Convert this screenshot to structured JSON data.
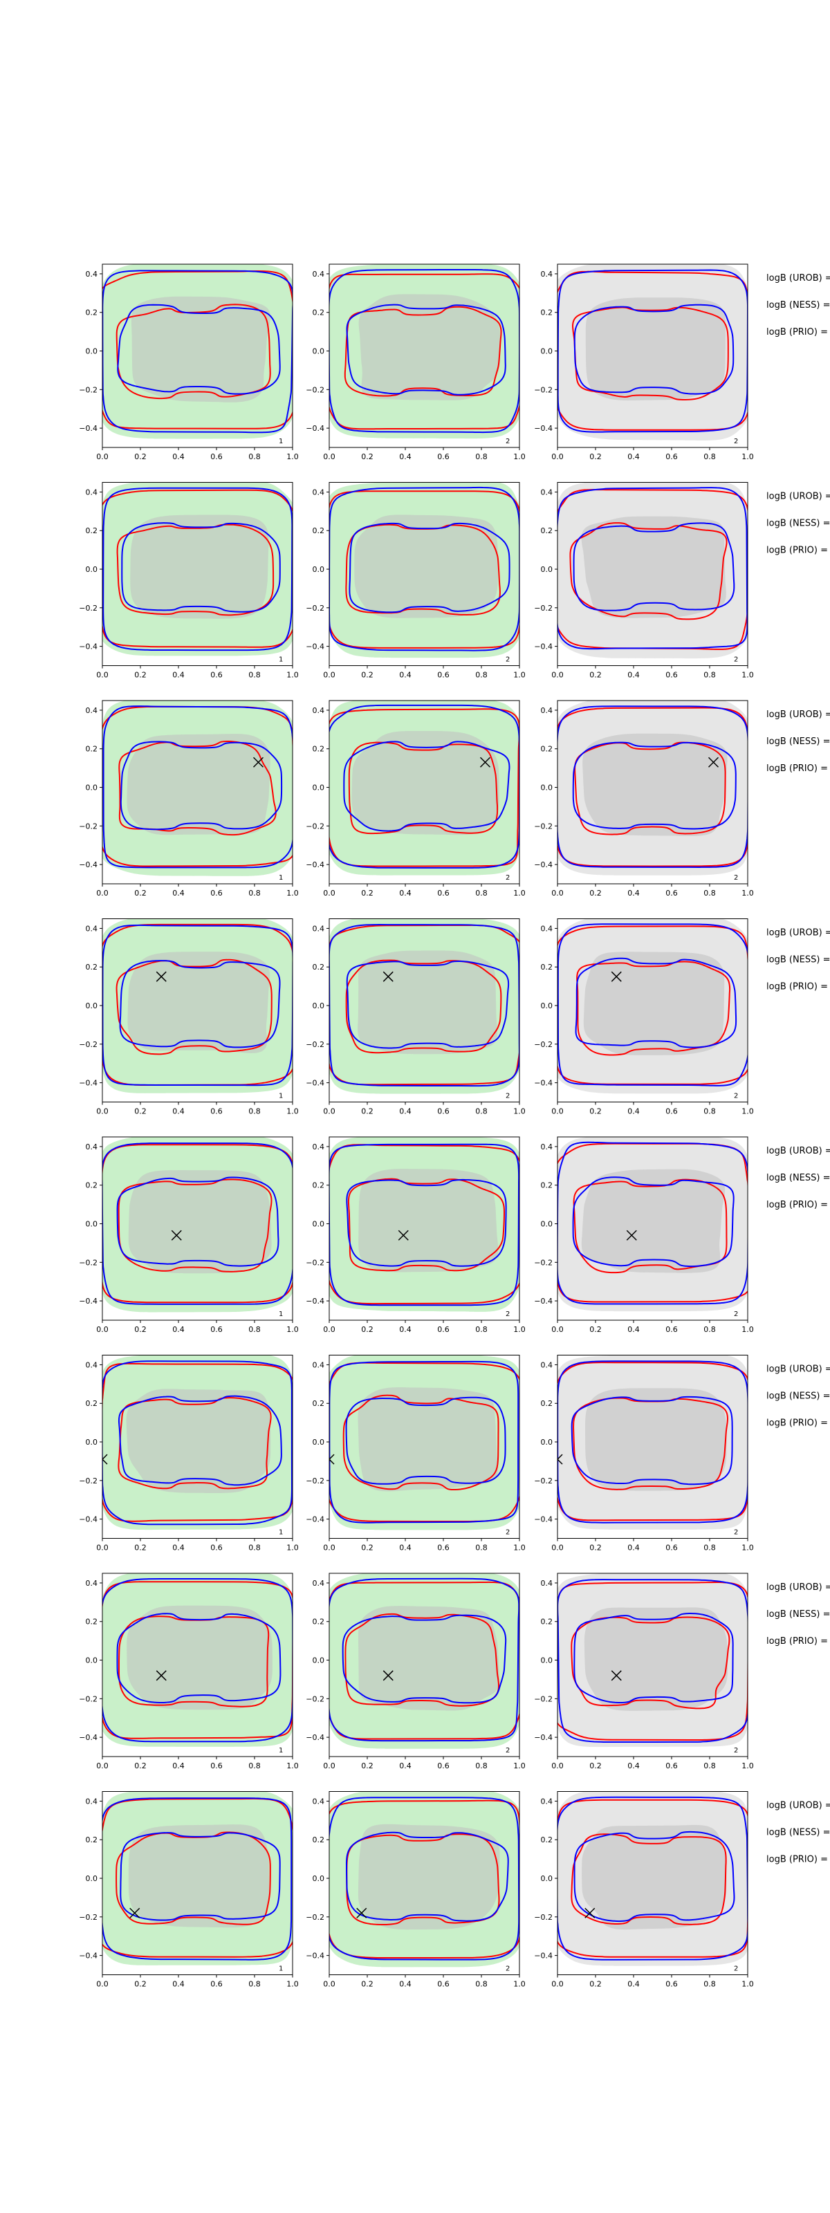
{
  "figure": {
    "rows": 8,
    "cols": 3,
    "x_ticks": [
      "0.0",
      "0.2",
      "0.4",
      "0.6",
      "0.8",
      "1.0"
    ],
    "y_ticks": [
      "0.4",
      "0.2",
      "0.0",
      "−0.2",
      "−0.4"
    ],
    "side_labels": [
      "logB (UROB) =",
      "logB (NESS) =",
      "logB (PRIO) ="
    ]
  },
  "chart_data": [
    {
      "type": "contour",
      "row": 1,
      "panels": [
        {
          "panel_label": "1",
          "fill": "green",
          "marker": null
        },
        {
          "panel_label": "2",
          "fill": "green",
          "marker": null
        },
        {
          "panel_label": "2",
          "fill": "gray",
          "marker": null
        }
      ]
    },
    {
      "type": "contour",
      "row": 2,
      "panels": [
        {
          "panel_label": "1",
          "fill": "green",
          "marker": null
        },
        {
          "panel_label": "2",
          "fill": "green",
          "marker": null
        },
        {
          "panel_label": "2",
          "fill": "gray",
          "marker": null
        }
      ]
    },
    {
      "type": "contour",
      "row": 3,
      "panels": [
        {
          "panel_label": "1",
          "fill": "green",
          "marker": {
            "x": 0.82,
            "y": 0.13
          }
        },
        {
          "panel_label": "2",
          "fill": "green",
          "marker": {
            "x": 0.82,
            "y": 0.13
          }
        },
        {
          "panel_label": "2",
          "fill": "gray",
          "marker": {
            "x": 0.82,
            "y": 0.13
          }
        }
      ]
    },
    {
      "type": "contour",
      "row": 4,
      "panels": [
        {
          "panel_label": "1",
          "fill": "green",
          "marker": {
            "x": 0.31,
            "y": 0.15
          }
        },
        {
          "panel_label": "2",
          "fill": "green",
          "marker": {
            "x": 0.31,
            "y": 0.15
          }
        },
        {
          "panel_label": "2",
          "fill": "gray",
          "marker": {
            "x": 0.31,
            "y": 0.15
          }
        }
      ]
    },
    {
      "type": "contour",
      "row": 5,
      "panels": [
        {
          "panel_label": "1",
          "fill": "green",
          "marker": {
            "x": 0.39,
            "y": -0.06
          }
        },
        {
          "panel_label": "2",
          "fill": "green",
          "marker": {
            "x": 0.39,
            "y": -0.06
          }
        },
        {
          "panel_label": "2",
          "fill": "gray",
          "marker": {
            "x": 0.39,
            "y": -0.06
          }
        }
      ]
    },
    {
      "type": "contour",
      "row": 6,
      "panels": [
        {
          "panel_label": "1",
          "fill": "green",
          "marker": {
            "x": 0.0,
            "y": -0.09
          }
        },
        {
          "panel_label": "2",
          "fill": "green",
          "marker": {
            "x": 0.0,
            "y": -0.09
          }
        },
        {
          "panel_label": "2",
          "fill": "gray",
          "marker": {
            "x": 0.0,
            "y": -0.09
          }
        }
      ]
    },
    {
      "type": "contour",
      "row": 7,
      "panels": [
        {
          "panel_label": "1",
          "fill": "green",
          "marker": {
            "x": 0.31,
            "y": -0.08
          }
        },
        {
          "panel_label": "2",
          "fill": "green",
          "marker": {
            "x": 0.31,
            "y": -0.08
          }
        },
        {
          "panel_label": "2",
          "fill": "gray",
          "marker": {
            "x": 0.31,
            "y": -0.08
          }
        }
      ]
    },
    {
      "type": "contour",
      "row": 8,
      "panels": [
        {
          "panel_label": "1",
          "fill": "green",
          "marker": {
            "x": 0.17,
            "y": -0.18
          }
        },
        {
          "panel_label": "2",
          "fill": "green",
          "marker": {
            "x": 0.17,
            "y": -0.18
          }
        },
        {
          "panel_label": "2",
          "fill": "gray",
          "marker": {
            "x": 0.17,
            "y": -0.18
          }
        }
      ]
    }
  ],
  "colors": {
    "green_fill": "#c9f0c9",
    "gray_fill": "#e6e6e6",
    "inner_gray": "#bfbfbf",
    "red": "#ff0000",
    "blue": "#0000ff",
    "axis": "#000000"
  }
}
